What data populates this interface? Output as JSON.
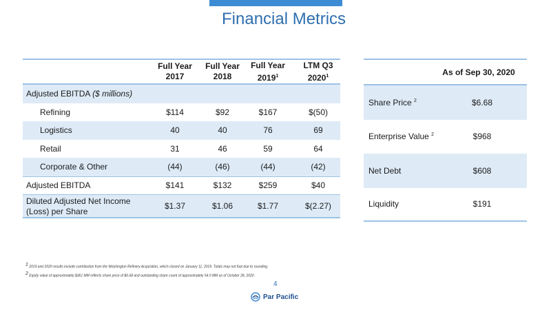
{
  "title": "Financial Metrics",
  "left_table": {
    "headers": [
      {
        "line1": "Full Year",
        "line2": "2017",
        "sup": ""
      },
      {
        "line1": "Full Year",
        "line2": "2018",
        "sup": ""
      },
      {
        "line1": "Full Year",
        "line2": "2019",
        "sup": "1"
      },
      {
        "line1": "LTM Q3",
        "line2": "2020",
        "sup": "1"
      }
    ],
    "section_label": "Adjusted EBITDA",
    "section_unit": "($ millions)",
    "rows": [
      {
        "label": "Refining",
        "values": [
          "$114",
          "$92",
          "$167",
          "$(50)"
        ]
      },
      {
        "label": "Logistics",
        "values": [
          "40",
          "40",
          "76",
          "69"
        ]
      },
      {
        "label": "Retail",
        "values": [
          "31",
          "46",
          "59",
          "64"
        ]
      },
      {
        "label": "Corporate & Other",
        "values": [
          "(44)",
          "(46)",
          "(44)",
          "(42)"
        ]
      },
      {
        "label": "Adjusted EBITDA",
        "values": [
          "$141",
          "$132",
          "$259",
          "$40"
        ]
      }
    ],
    "eps_row": {
      "label_line1": "Diluted Adjusted Net Income",
      "label_line2": "(Loss) per Share",
      "values": [
        "$1.37",
        "$1.06",
        "$1.77",
        "$(2.27)"
      ]
    }
  },
  "right_table": {
    "header": "As of Sep 30, 2020",
    "rows": [
      {
        "label": "Share Price",
        "sup": "2",
        "value": "$6.68"
      },
      {
        "label": "Enterprise Value",
        "sup": "2",
        "value": "$968"
      },
      {
        "label": "Net Debt",
        "sup": "",
        "value": "$608"
      },
      {
        "label": "Liquidity",
        "sup": "",
        "value": "$191"
      }
    ]
  },
  "footnotes": {
    "note1_marker": "1",
    "note1": "2019 and 2020 results include contribution from the Washington Refinery Acquisition, which closed on January 11, 2019. Totals may not foot due to rounding.",
    "note2_marker": "2",
    "note2": "Equity value of approximately $361 MM reflects share price of $6.68 and outstanding share count of approximately 54.0 MM as of October 28, 2020."
  },
  "page_number": "4",
  "logo_text": "Par Pacific",
  "colors": {
    "accent": "#3d8bd3",
    "title": "#2f6fb0",
    "band": "#deebf7",
    "rule": "#9cc2e5"
  }
}
